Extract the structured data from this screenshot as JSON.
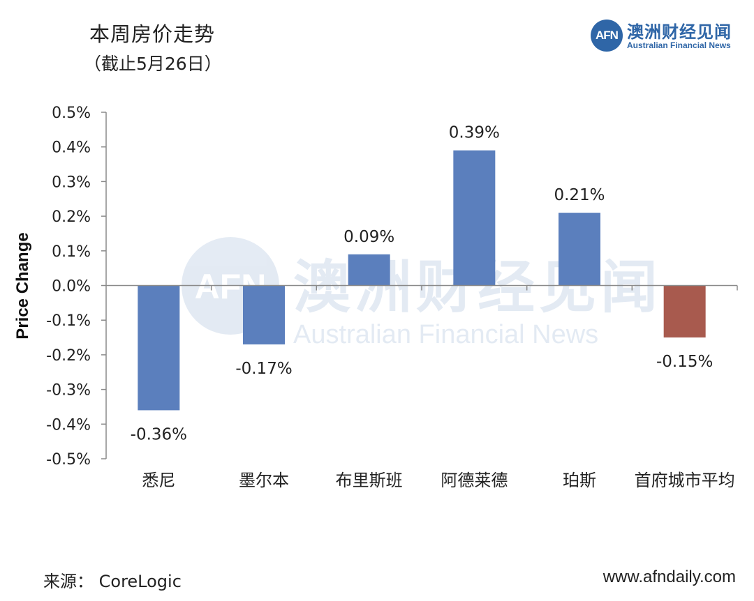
{
  "header": {
    "title": "本周房价走势",
    "subtitle": "（截止5月26日）"
  },
  "logo": {
    "badge": "AFN",
    "name_cn": "澳洲财经见闻",
    "name_en": "Australian Financial News"
  },
  "watermark": {
    "badge": "AFN",
    "name_cn": "澳洲财经见闻",
    "name_en": "Australian Financial News"
  },
  "footer": {
    "source": "来源： CoreLogic",
    "website": "www.afndaily.com"
  },
  "colors": {
    "positive_bar": "#5b7fbd",
    "average_bar": "#a85a4e",
    "logo_blue": "#2f66a7"
  },
  "chart_data": {
    "type": "bar",
    "title": "本周房价走势",
    "subtitle": "（截止5月26日）",
    "ylabel": "Price Change",
    "xlabel": "",
    "ylim": [
      -0.5,
      0.5
    ],
    "yticks": [
      0.5,
      0.4,
      0.3,
      0.2,
      0.1,
      0.0,
      -0.1,
      -0.2,
      -0.3,
      -0.4,
      -0.5
    ],
    "ytick_labels": [
      "0.5%",
      "0.4%",
      "0.3%",
      "0.2%",
      "0.1%",
      "0.0%",
      "-0.1%",
      "-0.2%",
      "-0.3%",
      "-0.4%",
      "-0.5%"
    ],
    "grid": false,
    "categories": [
      "悉尼",
      "墨尔本",
      "布里斯班",
      "阿德莱德",
      "珀斯",
      "首府城市平均"
    ],
    "values": [
      -0.36,
      -0.17,
      0.09,
      0.39,
      0.21,
      -0.15
    ],
    "data_labels": [
      "-0.36%",
      "-0.17%",
      "0.09%",
      "0.39%",
      "0.21%",
      "-0.15%"
    ],
    "bar_colors": [
      "#5b7fbd",
      "#5b7fbd",
      "#5b7fbd",
      "#5b7fbd",
      "#5b7fbd",
      "#a85a4e"
    ]
  }
}
